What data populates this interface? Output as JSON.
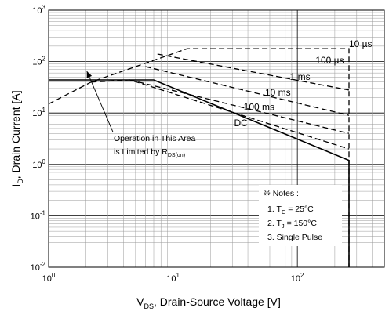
{
  "chart_data": {
    "type": "line",
    "title": "",
    "xlabel": "V_DS, Drain-Source Voltage [V]",
    "xlabel_parts": {
      "main": "V",
      "sub": "DS",
      "rest": ", Drain-Source Voltage [V]"
    },
    "ylabel": "I_D, Drain Current [A]",
    "ylabel_parts": {
      "main": "I",
      "sub": "D",
      "rest": ", Drain Current [A]"
    },
    "x_scale": "log",
    "y_scale": "log",
    "xlim": [
      1,
      500
    ],
    "ylim": [
      0.01,
      1000
    ],
    "grid": true,
    "x_ticks": [
      {
        "value": 1,
        "base": "10",
        "exp": "0"
      },
      {
        "value": 10,
        "base": "10",
        "exp": "1"
      },
      {
        "value": 100,
        "base": "10",
        "exp": "2"
      }
    ],
    "y_ticks": [
      {
        "value": 0.01,
        "base": "10",
        "exp": "-2"
      },
      {
        "value": 0.1,
        "base": "10",
        "exp": "-1"
      },
      {
        "value": 1,
        "base": "10",
        "exp": "0"
      },
      {
        "value": 10,
        "base": "10",
        "exp": "1"
      },
      {
        "value": 100,
        "base": "10",
        "exp": "2"
      },
      {
        "value": 1000,
        "base": "10",
        "exp": "3"
      }
    ],
    "series": [
      {
        "name": "10 µs",
        "style": "dashed",
        "points": [
          [
            1,
            15
          ],
          [
            2.2,
            40
          ],
          [
            13,
            178
          ],
          [
            260,
            178
          ],
          [
            260,
            0.01
          ]
        ]
      },
      {
        "name": "100 µs",
        "style": "dashed",
        "points": [
          [
            7.5,
            140
          ],
          [
            260,
            28
          ]
        ]
      },
      {
        "name": "1 ms",
        "style": "dashed",
        "points": [
          [
            6,
            80
          ],
          [
            260,
            9
          ]
        ]
      },
      {
        "name": "10 ms",
        "style": "dashed",
        "points": [
          [
            4.5,
            44
          ],
          [
            260,
            4
          ]
        ]
      },
      {
        "name": "100 ms",
        "style": "dashed",
        "points": [
          [
            2.2,
            40
          ],
          [
            4.5,
            44
          ],
          [
            260,
            2
          ]
        ]
      },
      {
        "name": "DC",
        "style": "solid",
        "points": [
          [
            1,
            44
          ],
          [
            7,
            44
          ],
          [
            260,
            1.2
          ],
          [
            260,
            0.01
          ]
        ]
      }
    ],
    "labels": [
      {
        "text": "10 µs",
        "x": 260,
        "y": 220
      },
      {
        "text": "100 µs",
        "x": 140,
        "y": 106
      },
      {
        "text": "1 ms",
        "x": 87,
        "y": 51
      },
      {
        "text": "10 ms",
        "x": 55,
        "y": 25
      },
      {
        "text": "100 ms",
        "x": 37,
        "y": 13
      },
      {
        "text": "DC",
        "x": 31,
        "y": 6.4
      }
    ],
    "annotation": {
      "line1": "Operation in This Area",
      "line2": "is Limited by R",
      "line2_sub": "DS(on)",
      "arrow_from": [
        3.3,
        4.2
      ],
      "arrow_to": [
        2.03,
        65
      ]
    },
    "notes": {
      "title": "❊ Notes :",
      "items": [
        {
          "pre": "1. T",
          "sub": "C",
          "post": " = 25°C"
        },
        {
          "pre": "2. T",
          "sub": "J",
          "post": " = 150°C"
        },
        {
          "pre": "3. Single Pulse",
          "sub": "",
          "post": ""
        }
      ]
    }
  }
}
